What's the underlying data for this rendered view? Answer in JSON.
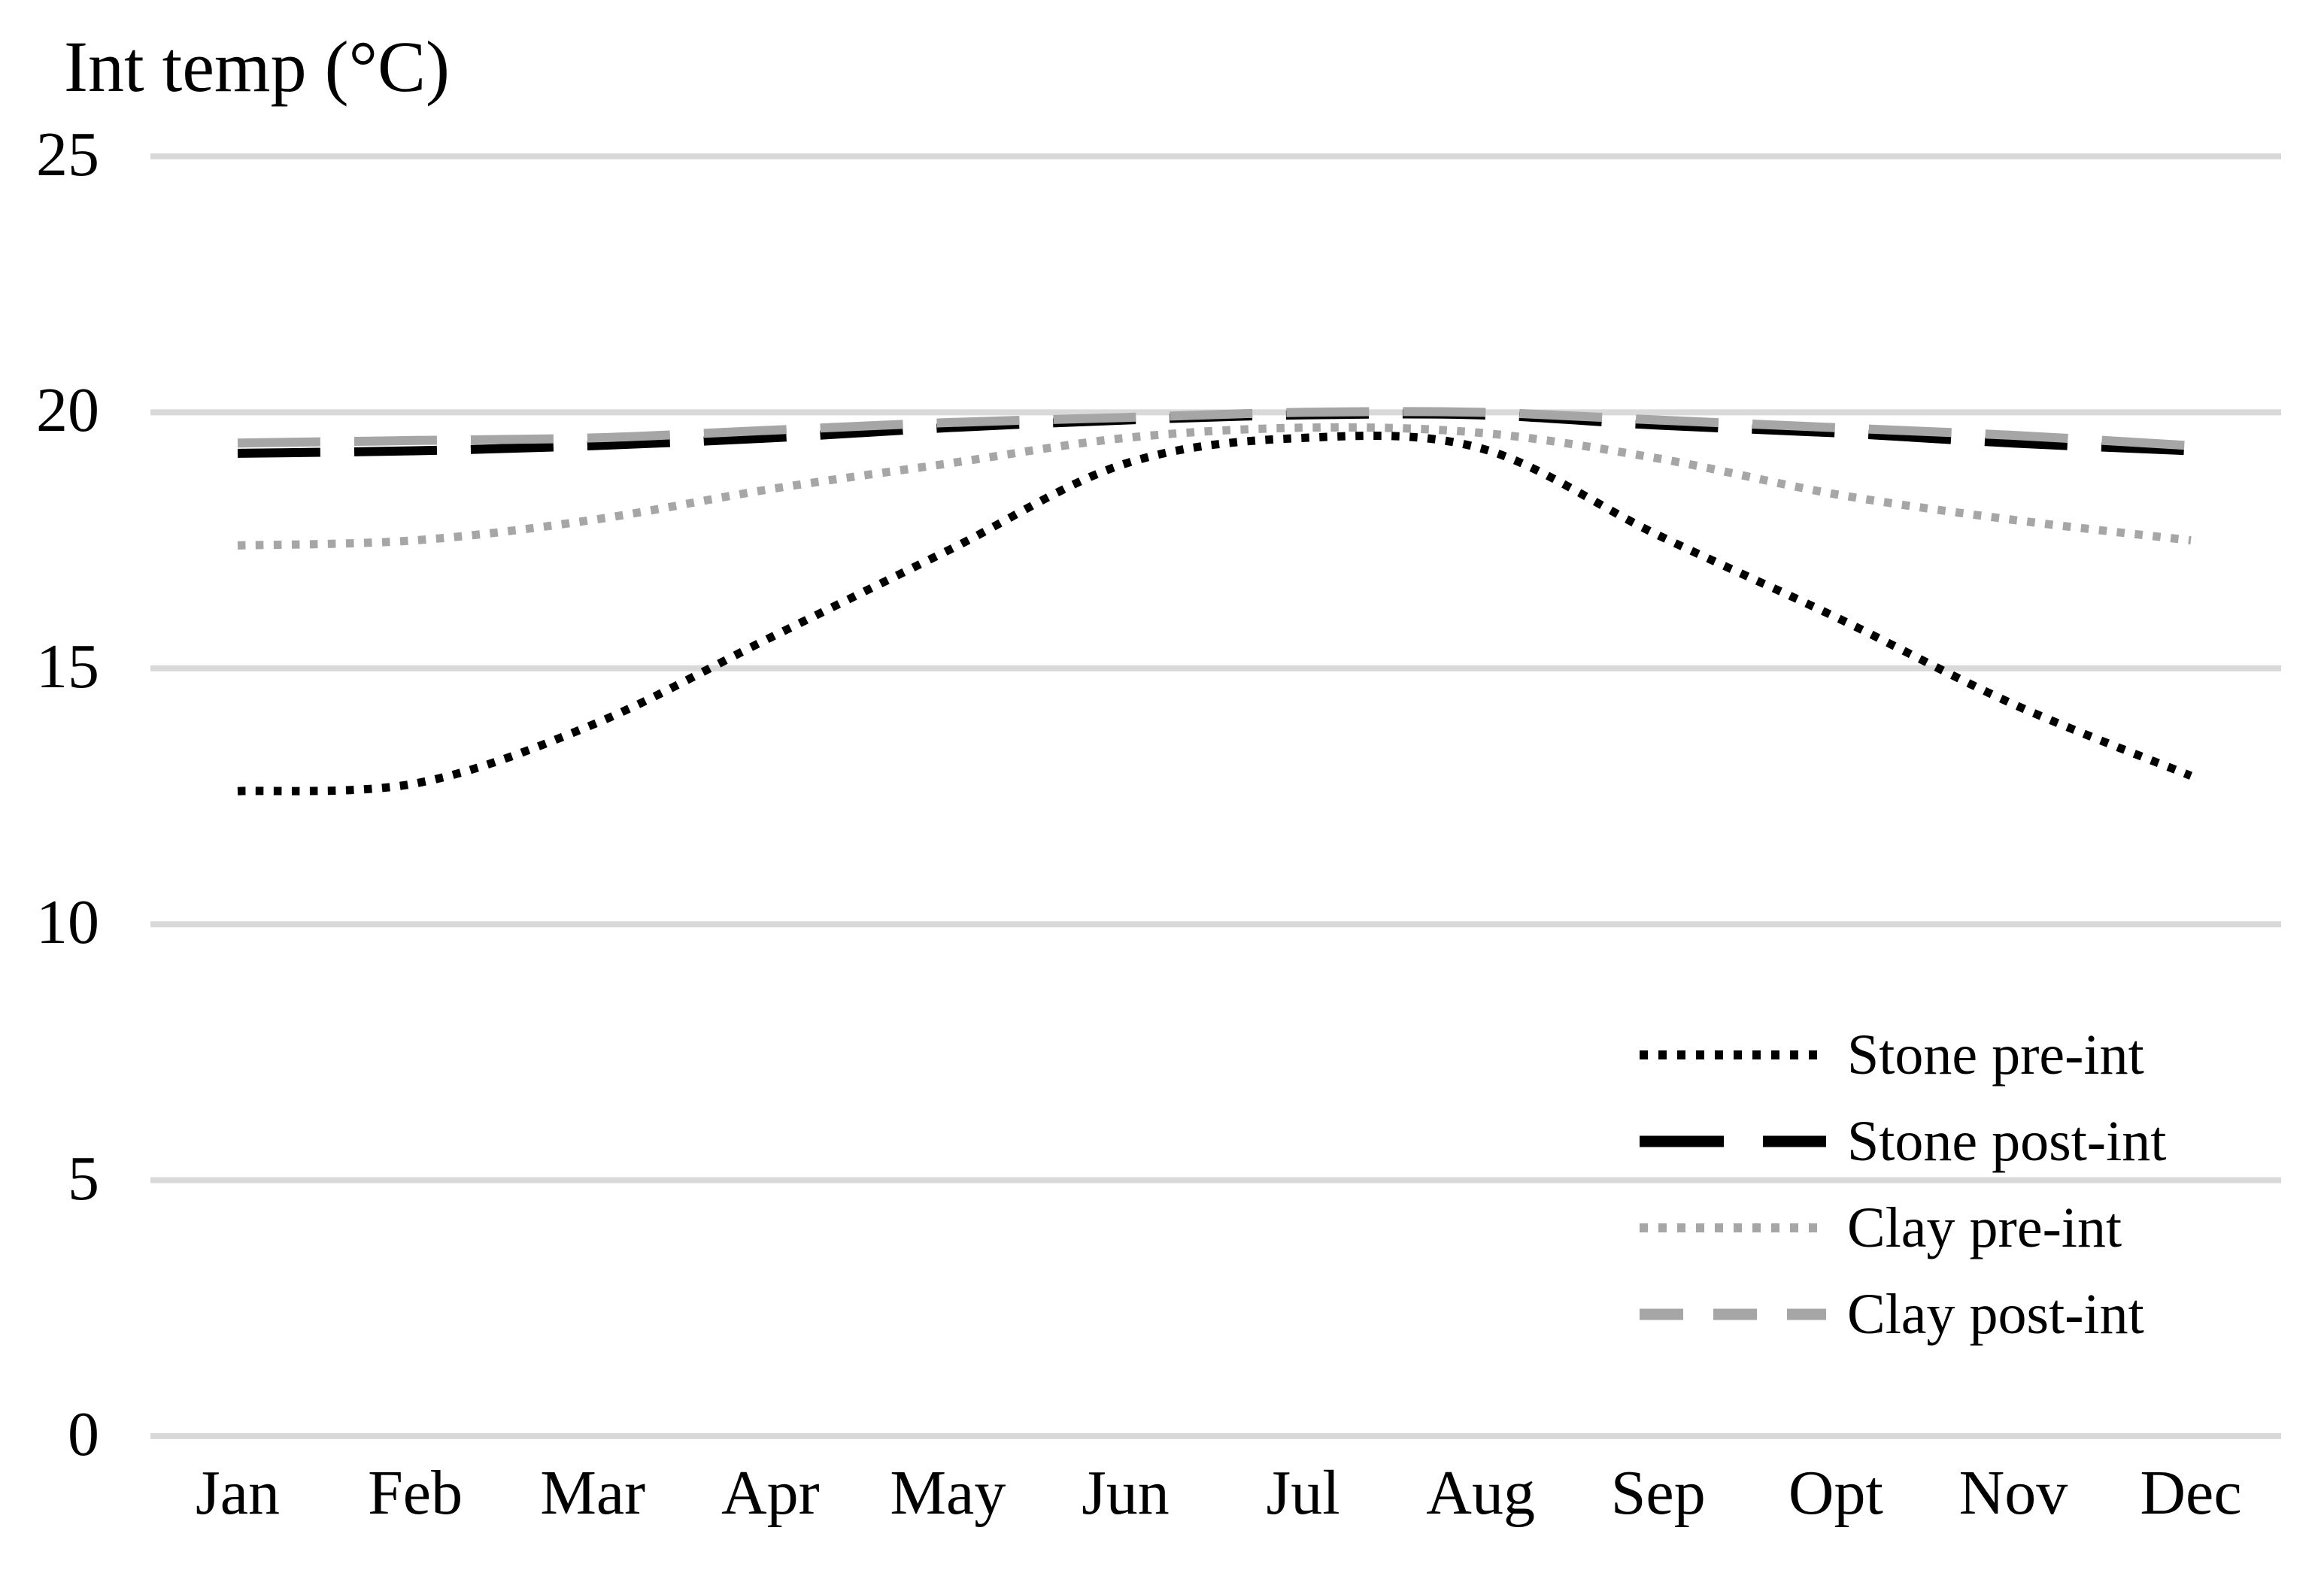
{
  "chart_data": {
    "type": "line",
    "title": "Int temp (°C)",
    "xlabel": "",
    "ylabel": "Int temp (°C)",
    "categories": [
      "Jan",
      "Feb",
      "Mar",
      "Apr",
      "May",
      "Jun",
      "Jul",
      "Aug",
      "Sep",
      "Opt",
      "Nov",
      "Dec"
    ],
    "yticks": [
      0,
      5,
      10,
      15,
      20,
      25
    ],
    "ylim": [
      0,
      25
    ],
    "grid": true,
    "gridline_color": "#d9d9d9",
    "background_color": "#ffffff",
    "text_color": "#000000",
    "legend_position": "right-middle",
    "series": [
      {
        "name": "Stone pre-int",
        "color": "#000000",
        "line_style": "dotted",
        "values": [
          12.6,
          12.75,
          13.9,
          15.6,
          17.3,
          19.0,
          19.5,
          19.3,
          17.6,
          16.0,
          14.3,
          12.9
        ]
      },
      {
        "name": "Stone post-int",
        "color": "#000000",
        "line_style": "long-dash",
        "values": [
          19.2,
          19.25,
          19.35,
          19.5,
          19.7,
          19.85,
          19.95,
          19.95,
          19.75,
          19.6,
          19.4,
          19.25
        ]
      },
      {
        "name": "Clay pre-int",
        "color": "#a6a6a6",
        "line_style": "dotted",
        "values": [
          17.4,
          17.5,
          17.9,
          18.5,
          19.0,
          19.5,
          19.7,
          19.6,
          19.1,
          18.4,
          17.9,
          17.5
        ]
      },
      {
        "name": "Clay post-int",
        "color": "#a6a6a6",
        "line_style": "long-dash",
        "values": [
          19.4,
          19.45,
          19.5,
          19.65,
          19.8,
          19.9,
          20.0,
          20.0,
          19.85,
          19.7,
          19.55,
          19.35
        ]
      }
    ]
  }
}
